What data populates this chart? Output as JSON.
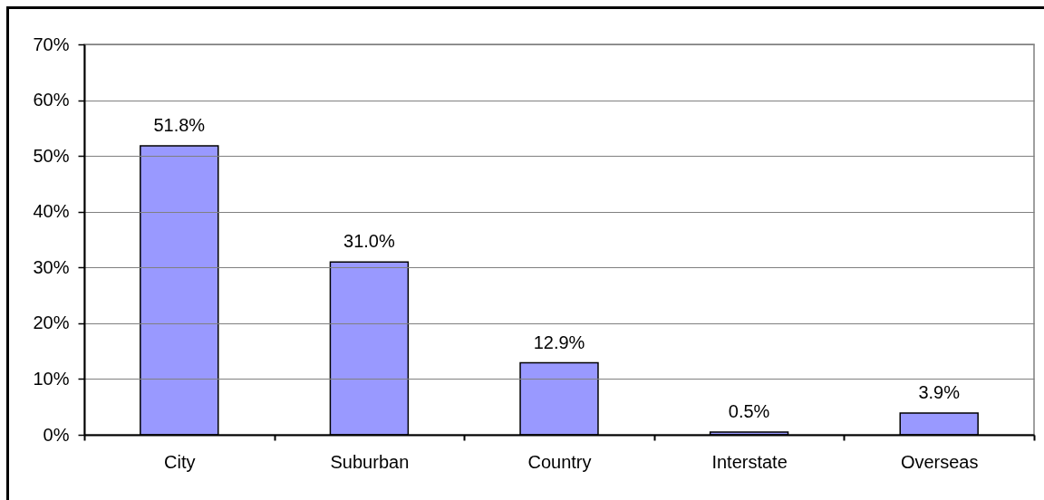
{
  "chart_data": {
    "type": "bar",
    "categories": [
      "City",
      "Suburban",
      "Country",
      "Interstate",
      "Overseas"
    ],
    "values": [
      51.8,
      31.0,
      12.9,
      0.5,
      3.9
    ],
    "color": "#9999ff",
    "value_labels": [
      "51.8%",
      "31.0%",
      "12.9%",
      "0.5%",
      "3.9%"
    ],
    "ylim": [
      0,
      70
    ],
    "yticks": [
      {
        "value": 0,
        "label": "0%"
      },
      {
        "value": 10,
        "label": "10%"
      },
      {
        "value": 20,
        "label": "20%"
      },
      {
        "value": 30,
        "label": "30%"
      },
      {
        "value": 40,
        "label": "40%"
      },
      {
        "value": 50,
        "label": "50%"
      },
      {
        "value": 60,
        "label": "60%"
      },
      {
        "value": 70,
        "label": "70%"
      }
    ],
    "grid": "y"
  }
}
